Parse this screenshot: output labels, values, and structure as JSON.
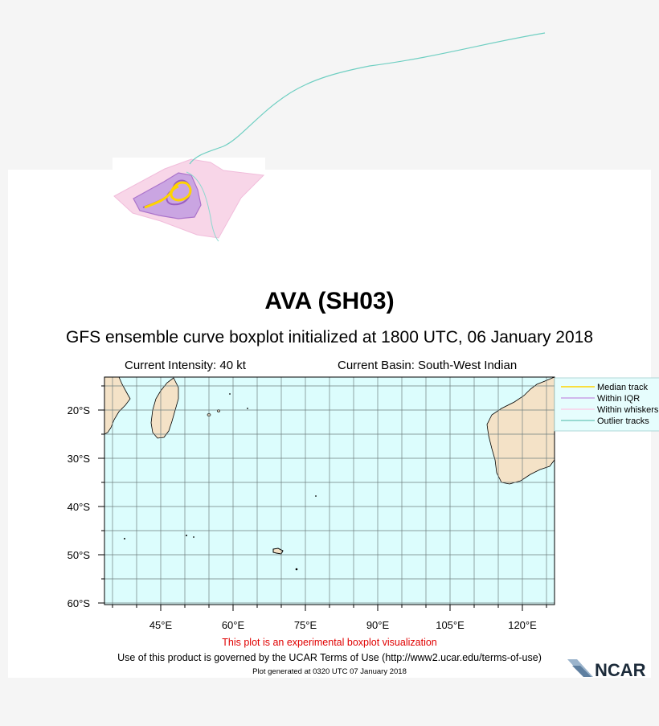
{
  "storm_title": "AVA (SH03)",
  "subtitle": "GFS ensemble curve boxplot initialized at 1800 UTC, 06 January 2018",
  "current_intensity": "Current Intensity: 40 kt",
  "current_basin": "Current Basin: South-West Indian",
  "legend": {
    "median": "Median track",
    "iqr": "Within IQR",
    "whisker": "Within whiskers",
    "outlier": "Outlier tracks"
  },
  "footer": {
    "experimental": "This plot is an experimental boxplot visualization",
    "terms": "Use of this product is governed by the UCAR Terms of Use (http://www2.ucar.edu/terms-of-use)",
    "generated": "Plot generated at 0320 UTC   07 January 2018"
  },
  "logo_text": "NCAR",
  "map": {
    "lat_labels": [
      "20°S",
      "30°S",
      "40°S",
      "50°S",
      "60°S"
    ],
    "lon_labels": [
      "45°E",
      "60°E",
      "75°E",
      "90°E",
      "105°E",
      "120°E"
    ]
  },
  "colors": {
    "ocean": "#dcfdfd",
    "land": "#f4e2c7",
    "median": "#ffd400",
    "iqr": "#c8a2e8",
    "whisker": "#f8d0e8",
    "outlier": "#7ecfc4",
    "experimental_note": "#e00000"
  }
}
